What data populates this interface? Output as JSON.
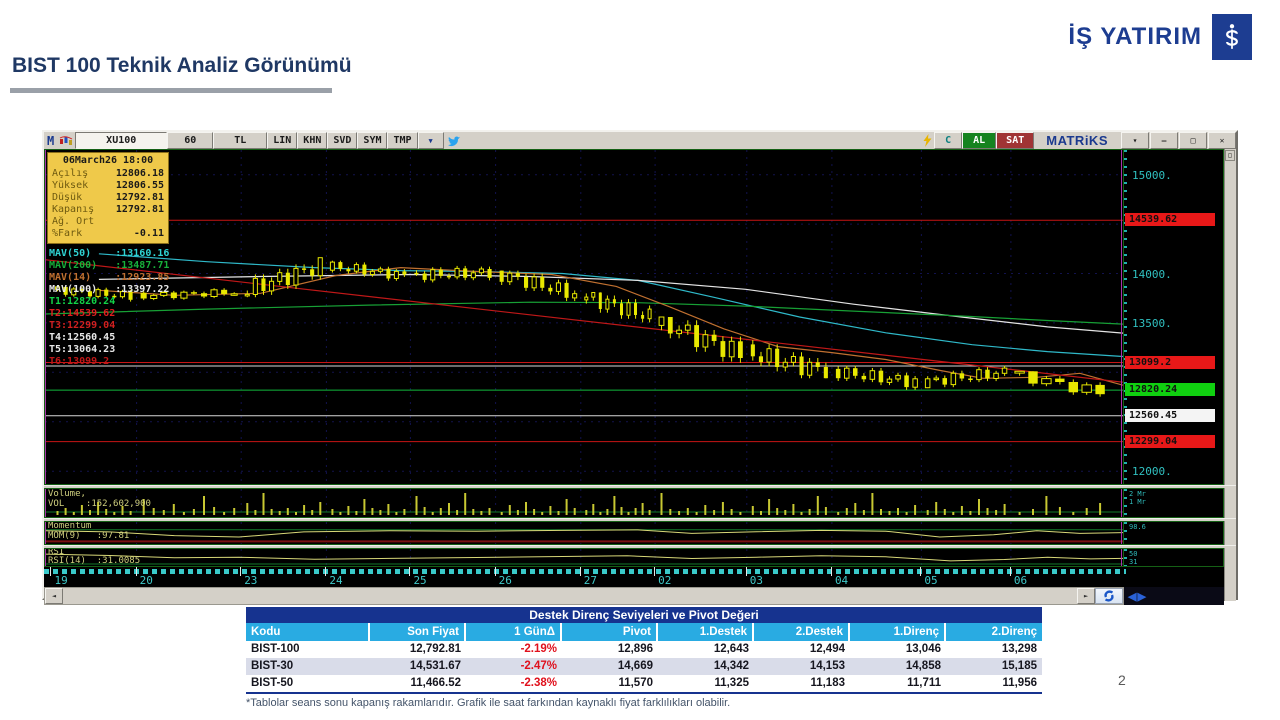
{
  "page": {
    "title": "BIST 100 Teknik Analiz Görünümü",
    "page_number": "2",
    "footnote": "*Tablolar seans sonu kapanış rakamlarıdır. Grafik ile saat farkından kaynaklı fiyat farklılıkları olabilir.",
    "brand_name": "İŞ YATIRIM"
  },
  "terminal": {
    "titlebar": {
      "app_initial": "M",
      "symbol": "XU100",
      "period": "60",
      "currency": "TL",
      "mode_buttons": [
        "LIN",
        "KHN",
        "SVD",
        "SYM",
        "TMP"
      ],
      "dropdown_icon": "▼",
      "al_label": "AL",
      "sat_label": "SAT",
      "logo": "MATRiKS",
      "window_buttons": [
        "▾",
        "–",
        "□",
        "✕"
      ],
      "pane_box_icon": "□"
    },
    "info_box": {
      "datetime": "06March26 18:00",
      "rows": [
        {
          "label": "Açılış",
          "value": "12806.18"
        },
        {
          "label": "Yüksek",
          "value": "12806.55"
        },
        {
          "label": "Düşük",
          "value": "12792.81"
        },
        {
          "label": "Kapanış",
          "value": "12792.81"
        },
        {
          "label": "Ağ. Ort",
          "value": ""
        },
        {
          "label": "%Fark",
          "value": "-0.11"
        }
      ]
    },
    "overlay_labels": [
      {
        "text": "MAV(50)    :13160.16",
        "color": "#2fd4d4"
      },
      {
        "text": "MAV(200)   :13487.71",
        "color": "#17b03a"
      },
      {
        "text": "MAV(14)    :12923.85",
        "color": "#c07030"
      },
      {
        "text": "MAV(100)   :13397.22",
        "color": "#e8e8e8"
      },
      {
        "text": "T1:12820.24",
        "color": "#12d248"
      },
      {
        "text": "T2:14539.62",
        "color": "#e02020"
      },
      {
        "text": "T3:12299.04",
        "color": "#d02020"
      },
      {
        "text": "T4:12560.45",
        "color": "#e8e8e8"
      },
      {
        "text": "T5:13064.23",
        "color": "#e8e8e8"
      },
      {
        "text": "T6:13099.2",
        "color": "#c01818"
      }
    ],
    "volume_panel": {
      "label1": "Volume,",
      "label2": "VOL    :152,602,900",
      "axis": "2 Mr\n1 Mr"
    },
    "momentum_panel": {
      "label1": "Momentum",
      "label2": "MOM(9)   :97.81",
      "axis": "98.6"
    },
    "rsi_panel": {
      "label1": "RSI",
      "label2": "RSI(14)  :31.0085",
      "axis": "50\n31"
    },
    "nav_arrows": "◀▶",
    "scroll_left_arrow": "◄",
    "scroll_right_arrow": "►"
  },
  "chart_data": {
    "type": "candlestick",
    "symbol": "XU100",
    "interval_minutes": 60,
    "y_axis": {
      "min": 11870,
      "max": 15250,
      "grid": [
        15000,
        14500,
        14000,
        13500,
        13000,
        12500,
        12000
      ],
      "tick_labels": [
        {
          "value": 15000,
          "label": "15000."
        },
        {
          "value": 14000,
          "label": "14000."
        },
        {
          "value": 13500,
          "label": "13500."
        },
        {
          "value": 12000,
          "label": "12000."
        }
      ],
      "badges": [
        {
          "value": 14539.62,
          "label": "14539.62",
          "bg": "#e81818"
        },
        {
          "value": 13099.2,
          "label": "13099.2",
          "bg": "#e81818"
        },
        {
          "value": 12820.24,
          "label": "12820.24",
          "bg": "#10d010"
        },
        {
          "value": 12560.45,
          "label": "12560.45",
          "bg": "#f4f4f4"
        },
        {
          "value": 12299.04,
          "label": "12299.04",
          "bg": "#e81818"
        }
      ]
    },
    "levels": [
      {
        "name": "T2",
        "value": 14539.62,
        "color": "#c81414"
      },
      {
        "name": "T6",
        "value": 13099.2,
        "color": "#c81414"
      },
      {
        "name": "T5",
        "value": 13064.23,
        "color": "#d8d8d8"
      },
      {
        "name": "T1",
        "value": 12820.24,
        "color": "#12b83c"
      },
      {
        "name": "T4",
        "value": 12560.45,
        "color": "#d8d8d8"
      },
      {
        "name": "T3",
        "value": 12299.04,
        "color": "#c81414"
      }
    ],
    "lines": [
      {
        "name": "MAV(50)",
        "color": "#2fb9c9",
        "points": [
          [
            0.05,
            14200
          ],
          [
            0.15,
            14120
          ],
          [
            0.25,
            14060
          ],
          [
            0.33,
            14030
          ],
          [
            0.4,
            14020
          ],
          [
            0.48,
            14000
          ],
          [
            0.55,
            13930
          ],
          [
            0.62,
            13760
          ],
          [
            0.7,
            13560
          ],
          [
            0.78,
            13400
          ],
          [
            0.86,
            13280
          ],
          [
            0.93,
            13210
          ],
          [
            1.0,
            13160
          ]
        ]
      },
      {
        "name": "MAV(100)",
        "color": "#e4e4e4",
        "points": [
          [
            0.05,
            13940
          ],
          [
            0.2,
            13970
          ],
          [
            0.34,
            13990
          ],
          [
            0.45,
            13970
          ],
          [
            0.55,
            13930
          ],
          [
            0.65,
            13840
          ],
          [
            0.75,
            13690
          ],
          [
            0.85,
            13560
          ],
          [
            0.93,
            13460
          ],
          [
            1.0,
            13397
          ]
        ]
      },
      {
        "name": "MAV(200)",
        "color": "#17a035",
        "points": [
          [
            0.0,
            13590
          ],
          [
            0.15,
            13640
          ],
          [
            0.3,
            13680
          ],
          [
            0.45,
            13710
          ],
          [
            0.55,
            13705
          ],
          [
            0.65,
            13670
          ],
          [
            0.75,
            13620
          ],
          [
            0.85,
            13570
          ],
          [
            0.93,
            13525
          ],
          [
            1.0,
            13488
          ]
        ]
      },
      {
        "name": "MAV(14)",
        "color": "#c07030",
        "points": [
          [
            0.05,
            13830
          ],
          [
            0.12,
            13780
          ],
          [
            0.2,
            13800
          ],
          [
            0.27,
            13980
          ],
          [
            0.33,
            14060
          ],
          [
            0.4,
            14020
          ],
          [
            0.47,
            13990
          ],
          [
            0.53,
            13870
          ],
          [
            0.58,
            13660
          ],
          [
            0.63,
            13440
          ],
          [
            0.68,
            13260
          ],
          [
            0.73,
            13200
          ],
          [
            0.78,
            13130
          ],
          [
            0.83,
            13020
          ],
          [
            0.87,
            12940
          ],
          [
            0.92,
            12950
          ],
          [
            0.96,
            12990
          ],
          [
            1.0,
            12870
          ]
        ]
      },
      {
        "name": "trend",
        "color": "#c01818",
        "points": [
          [
            0.0,
            14140
          ],
          [
            1.0,
            12900
          ]
        ]
      }
    ],
    "day_boundaries": [
      0.006,
      0.085,
      0.182,
      0.261,
      0.339,
      0.418,
      0.497,
      0.566,
      0.651,
      0.73,
      0.813,
      0.896
    ],
    "days": [
      {
        "label": "19",
        "open": 13840,
        "high": 13880,
        "low": 13690,
        "close": 13770,
        "candles": 10
      },
      {
        "label": "20",
        "open": 13770,
        "high": 13860,
        "low": 13700,
        "close": 13810,
        "candles": 10
      },
      {
        "label": "23",
        "open": 13810,
        "high": 14160,
        "low": 13760,
        "close": 14080,
        "candles": 10
      },
      {
        "label": "24",
        "open": 14080,
        "high": 14130,
        "low": 13900,
        "close": 13980,
        "candles": 10
      },
      {
        "label": "25",
        "open": 13980,
        "high": 14160,
        "low": 13910,
        "close": 14010,
        "candles": 10
      },
      {
        "label": "26",
        "open": 14010,
        "high": 14030,
        "low": 13700,
        "close": 13790,
        "candles": 10
      },
      {
        "label": "27",
        "open": 13790,
        "high": 13810,
        "low": 13440,
        "close": 13560,
        "candles": 10
      },
      {
        "label": "02",
        "open": 13540,
        "high": 13560,
        "low": 13080,
        "close": 13180,
        "candles": 10
      },
      {
        "label": "03",
        "open": 13200,
        "high": 13380,
        "low": 12940,
        "close": 13010,
        "candles": 10
      },
      {
        "label": "04",
        "open": 13010,
        "high": 13090,
        "low": 12810,
        "close": 12900,
        "candles": 10
      },
      {
        "label": "05",
        "open": 12900,
        "high": 13100,
        "low": 12840,
        "close": 13000,
        "candles": 10
      },
      {
        "label": "06",
        "open": 13000,
        "high": 13010,
        "low": 12750,
        "close": 12792.81,
        "candles": 7
      }
    ],
    "last_price": 12792.81,
    "volume": {
      "value": "152,602,900",
      "bar_pattern": [
        4,
        7,
        3,
        10,
        5,
        13,
        6,
        3,
        9,
        4,
        16,
        7,
        5,
        11,
        3,
        6,
        19,
        8,
        3,
        7,
        12,
        5,
        22,
        6
      ]
    },
    "momentum": {
      "value": 97.81,
      "path": [
        [
          0,
          0.4
        ],
        [
          0.06,
          0.45
        ],
        [
          0.12,
          0.62
        ],
        [
          0.18,
          0.68
        ],
        [
          0.24,
          0.45
        ],
        [
          0.32,
          0.4
        ],
        [
          0.4,
          0.42
        ],
        [
          0.48,
          0.38
        ],
        [
          0.55,
          0.36
        ],
        [
          0.6,
          0.52
        ],
        [
          0.66,
          0.44
        ],
        [
          0.72,
          0.38
        ],
        [
          0.78,
          0.42
        ],
        [
          0.83,
          0.68
        ],
        [
          0.88,
          0.58
        ],
        [
          0.92,
          0.4
        ],
        [
          0.96,
          0.52
        ],
        [
          1,
          0.48
        ]
      ]
    },
    "rsi": {
      "value": 31.0085,
      "path": [
        [
          0,
          0.3
        ],
        [
          0.06,
          0.38
        ],
        [
          0.12,
          0.52
        ],
        [
          0.18,
          0.48
        ],
        [
          0.25,
          0.6
        ],
        [
          0.32,
          0.55
        ],
        [
          0.4,
          0.5
        ],
        [
          0.48,
          0.44
        ],
        [
          0.54,
          0.4
        ],
        [
          0.6,
          0.56
        ],
        [
          0.66,
          0.48
        ],
        [
          0.72,
          0.4
        ],
        [
          0.78,
          0.46
        ],
        [
          0.84,
          0.7
        ],
        [
          0.89,
          0.62
        ],
        [
          0.93,
          0.48
        ],
        [
          0.97,
          0.58
        ],
        [
          1,
          0.55
        ]
      ]
    }
  },
  "table": {
    "title": "Destek Direnç Seviyeleri ve Pivot Değeri",
    "columns": [
      "Kodu",
      "Son Fiyat",
      "1 GünΔ",
      "Pivot",
      "1.Destek",
      "2.Destek",
      "1.Direnç",
      "2.Direnç"
    ],
    "rows": [
      [
        "BIST-100",
        "12,792.81",
        "-2.19%",
        "12,896",
        "12,643",
        "12,494",
        "13,046",
        "13,298"
      ],
      [
        "BIST-30",
        "14,531.67",
        "-2.47%",
        "14,669",
        "14,342",
        "14,153",
        "14,858",
        "15,185"
      ],
      [
        "BIST-50",
        "11,466.52",
        "-2.38%",
        "11,570",
        "11,325",
        "11,183",
        "11,711",
        "11,956"
      ]
    ]
  }
}
